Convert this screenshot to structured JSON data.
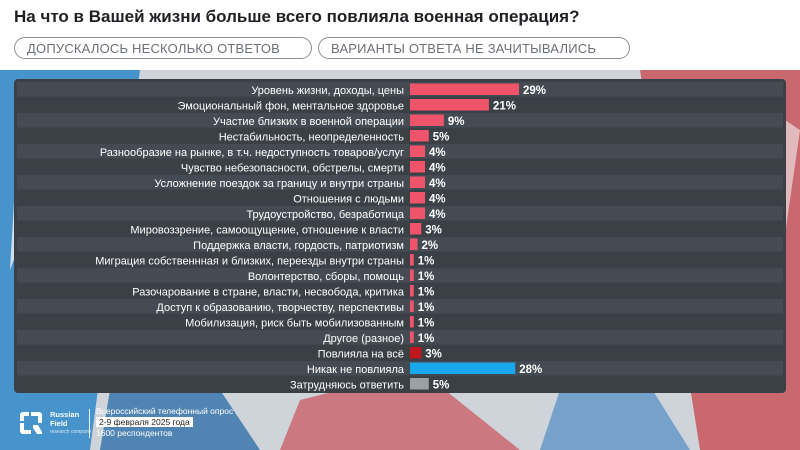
{
  "header": {
    "title": "На что в Вашей жизни больше всего повлияла военная операция?",
    "pills": [
      "ДОПУСКАЛОСЬ НЕСКОЛЬКО ОТВЕТОВ",
      "ВАРИАНТЫ ОТВЕТА НЕ ЗАЧИТЫВАЛИСЬ"
    ]
  },
  "footer": {
    "brand_line1": "Russian",
    "brand_line2": "Field",
    "brand_tagline": "research company",
    "survey_type": "Всероссийский телефонный опрос",
    "survey_dates": "2-9 февраля 2025 года",
    "respondents": "1600 респондентов"
  },
  "colors": {
    "bar_main": "#f0546a",
    "bar_all": "#c0161c",
    "bar_none": "#1aa8ec",
    "bar_unsure": "#9aa0a6",
    "panel": "#3b4047",
    "row_alt": "#454b53"
  },
  "chart_data": {
    "type": "bar",
    "orientation": "horizontal",
    "title": "На что в Вашей жизни больше всего повлияла военная операция?",
    "xlabel": "",
    "ylabel": "",
    "xlim": [
      0,
      30
    ],
    "grid": false,
    "categories": [
      "Уровень жизни, доходы, цены",
      "Эмоциональный фон, ментальное здоровье",
      "Участие близких в военной операции",
      "Нестабильность, неопределенность",
      "Разнообразие на рынке, в т.ч. недоступность товаров/услуг",
      "Чувство небезопасности, обстрелы, смерти",
      "Усложнение поездок за границу и внутри страны",
      "Отношения с людьми",
      "Трудоустройство, безработица",
      "Мировоззрение, самоощущение, отношение к власти",
      "Поддержка власти, гордость, патриотизм",
      "Миграция собственнная и близких, переезды внутри страны",
      "Волонтерство, сборы, помощь",
      "Разочарование в стране, власти, несвобода, критика",
      "Доступ к образованию, творчеству, перспективы",
      "Мобилизация, риск быть мобилизованным",
      "Другое (разное)",
      "Повлияла на всё",
      "Никак не повлияла",
      "Затрудняюсь ответить"
    ],
    "values": [
      29,
      21,
      9,
      5,
      4,
      4,
      4,
      4,
      4,
      3,
      2,
      1,
      1,
      1,
      1,
      1,
      1,
      3,
      28,
      5
    ],
    "value_labels": [
      "29%",
      "21%",
      "9%",
      "5%",
      "4%",
      "4%",
      "4%",
      "4%",
      "4%",
      "3%",
      "2%",
      "1%",
      "1%",
      "1%",
      "1%",
      "1%",
      "1%",
      "3%",
      "28%",
      "5%"
    ],
    "bar_colors": [
      "main",
      "main",
      "main",
      "main",
      "main",
      "main",
      "main",
      "main",
      "main",
      "main",
      "main",
      "main",
      "main",
      "main",
      "main",
      "main",
      "main",
      "all",
      "none",
      "unsure"
    ]
  }
}
